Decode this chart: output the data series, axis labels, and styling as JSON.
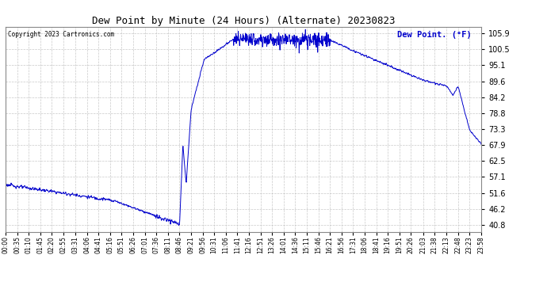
{
  "title": "Dew Point by Minute (24 Hours) (Alternate) 20230823",
  "copyright": "Copyright 2023 Cartronics.com",
  "legend_label": "Dew Point. (°F)",
  "legend_color": "#0000cc",
  "line_color": "#0000cc",
  "bg_color": "#ffffff",
  "plot_bg_color": "#ffffff",
  "grid_color": "#bbbbbb",
  "yticks": [
    40.8,
    46.2,
    51.6,
    57.1,
    62.5,
    67.9,
    73.3,
    78.8,
    84.2,
    89.6,
    95.1,
    100.5,
    105.9
  ],
  "ymin": 38.5,
  "ymax": 108.2,
  "xtick_labels": [
    "00:00",
    "00:35",
    "01:10",
    "01:45",
    "02:20",
    "02:55",
    "03:31",
    "04:06",
    "04:41",
    "05:16",
    "05:51",
    "06:26",
    "07:01",
    "07:36",
    "08:11",
    "08:46",
    "09:21",
    "09:56",
    "10:31",
    "11:06",
    "11:41",
    "12:16",
    "12:51",
    "13:26",
    "14:01",
    "14:36",
    "15:11",
    "15:46",
    "16:21",
    "16:56",
    "17:31",
    "18:06",
    "18:41",
    "19:16",
    "19:51",
    "20:26",
    "21:03",
    "21:38",
    "22:13",
    "22:48",
    "23:23",
    "23:58"
  ],
  "figsize": [
    6.9,
    3.75
  ],
  "dpi": 100
}
